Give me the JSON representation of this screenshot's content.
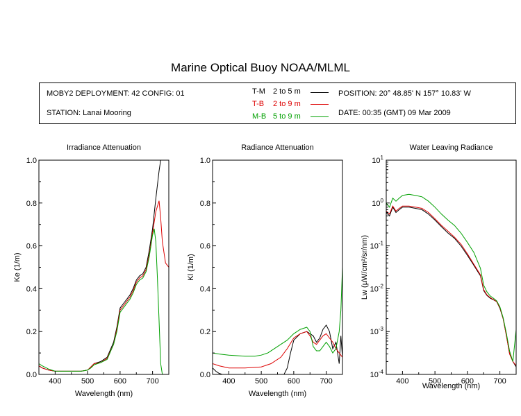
{
  "title": "Marine Optical Buoy NOAA/MLML",
  "info": {
    "deployment": "MOBY2 DEPLOYMENT: 42 CONFIG: 01",
    "station": "STATION: Lanai Mooring",
    "position": "POSITION: 20° 48.85' N   157° 10.83' W",
    "date": "DATE: 00:35 (GMT) 09 Mar 2009"
  },
  "legend": [
    {
      "code": "T-M",
      "range": "2 to 5  m",
      "color": "#000000"
    },
    {
      "code": "T-B",
      "range": "2 to 9  m",
      "color": "#dd0000"
    },
    {
      "code": "M-B",
      "range": "5 to 9  m",
      "color": "#00a000"
    }
  ],
  "chart_data": [
    {
      "type": "line",
      "title": "Irradiance Attenuation",
      "xlabel": "Wavelength (nm)",
      "ylabel": "Ke  (1/m)",
      "xlim": [
        350,
        750
      ],
      "ylim": [
        0,
        1
      ],
      "xticks": [
        "400",
        "500",
        "600",
        "700"
      ],
      "yticks": [
        "0.0",
        "0.2",
        "0.4",
        "0.6",
        "0.8",
        "1.0"
      ],
      "series": [
        {
          "name": "T-M",
          "color": "#000000",
          "x": [
            350,
            360,
            380,
            400,
            420,
            450,
            480,
            500,
            510,
            520,
            540,
            560,
            580,
            590,
            600,
            610,
            620,
            630,
            640,
            650,
            660,
            670,
            680,
            690,
            700,
            710,
            720,
            725
          ],
          "y": [
            0.04,
            0.03,
            0.02,
            0.015,
            0.015,
            0.015,
            0.015,
            0.02,
            0.035,
            0.05,
            0.06,
            0.08,
            0.15,
            0.22,
            0.31,
            0.33,
            0.35,
            0.37,
            0.4,
            0.44,
            0.46,
            0.47,
            0.5,
            0.58,
            0.68,
            0.82,
            0.95,
            1.0
          ]
        },
        {
          "name": "T-B",
          "color": "#dd0000",
          "x": [
            350,
            360,
            380,
            400,
            420,
            450,
            480,
            500,
            510,
            520,
            540,
            560,
            580,
            590,
            600,
            610,
            620,
            630,
            640,
            650,
            660,
            670,
            680,
            690,
            700,
            710,
            720,
            725,
            730,
            740,
            750
          ],
          "y": [
            0.04,
            0.03,
            0.02,
            0.015,
            0.015,
            0.015,
            0.015,
            0.02,
            0.035,
            0.05,
            0.055,
            0.075,
            0.14,
            0.21,
            0.3,
            0.32,
            0.34,
            0.36,
            0.39,
            0.43,
            0.45,
            0.46,
            0.49,
            0.56,
            0.66,
            0.76,
            0.81,
            0.73,
            0.62,
            0.52,
            0.5
          ]
        },
        {
          "name": "M-B",
          "color": "#00a000",
          "x": [
            350,
            360,
            380,
            400,
            420,
            450,
            480,
            500,
            510,
            520,
            540,
            560,
            580,
            590,
            600,
            610,
            620,
            630,
            640,
            650,
            660,
            670,
            680,
            690,
            700,
            705,
            710,
            715,
            720,
            725,
            730
          ],
          "y": [
            0.05,
            0.04,
            0.025,
            0.015,
            0.015,
            0.015,
            0.015,
            0.02,
            0.03,
            0.045,
            0.055,
            0.07,
            0.14,
            0.2,
            0.29,
            0.31,
            0.33,
            0.35,
            0.38,
            0.42,
            0.44,
            0.45,
            0.48,
            0.55,
            0.65,
            0.68,
            0.62,
            0.45,
            0.25,
            0.05,
            0.0
          ]
        }
      ]
    },
    {
      "type": "line",
      "title": "Radiance Attenuation",
      "xlabel": "Wavelength (nm)",
      "ylabel": "Kl  (1/m)",
      "xlim": [
        350,
        750
      ],
      "ylim": [
        0,
        1
      ],
      "xticks": [
        "400",
        "500",
        "600",
        "700"
      ],
      "yticks": [
        "0.0",
        "0.2",
        "0.4",
        "0.6",
        "0.8",
        "1.0"
      ],
      "series": [
        {
          "name": "T-M",
          "color": "#000000",
          "x": [
            350,
            360,
            370,
            380,
            390,
            400,
            450,
            500,
            550,
            570,
            580,
            590,
            600,
            620,
            640,
            660,
            670,
            680,
            690,
            700,
            710,
            720,
            730,
            740,
            745,
            750
          ],
          "y": [
            0.03,
            0.015,
            0.005,
            0.0,
            0.0,
            0.0,
            0.0,
            0.0,
            0.0,
            0.0,
            0.03,
            0.1,
            0.16,
            0.19,
            0.2,
            0.18,
            0.15,
            0.17,
            0.21,
            0.23,
            0.2,
            0.12,
            0.15,
            0.05,
            0.18,
            0.08
          ]
        },
        {
          "name": "T-B",
          "color": "#dd0000",
          "x": [
            350,
            370,
            400,
            450,
            500,
            530,
            560,
            580,
            600,
            620,
            640,
            650,
            660,
            670,
            680,
            690,
            700,
            710,
            720,
            730,
            740,
            750
          ],
          "y": [
            0.05,
            0.04,
            0.03,
            0.03,
            0.035,
            0.05,
            0.08,
            0.12,
            0.17,
            0.19,
            0.2,
            0.18,
            0.15,
            0.14,
            0.16,
            0.18,
            0.19,
            0.17,
            0.15,
            0.12,
            0.1,
            0.08
          ]
        },
        {
          "name": "M-B",
          "color": "#00a000",
          "x": [
            350,
            370,
            400,
            450,
            480,
            500,
            520,
            540,
            560,
            580,
            600,
            620,
            640,
            650,
            660,
            670,
            680,
            690,
            700,
            710,
            720,
            730,
            740,
            745,
            750
          ],
          "y": [
            0.1,
            0.095,
            0.09,
            0.085,
            0.085,
            0.09,
            0.1,
            0.12,
            0.14,
            0.16,
            0.19,
            0.21,
            0.22,
            0.2,
            0.13,
            0.11,
            0.11,
            0.13,
            0.15,
            0.13,
            0.1,
            0.12,
            0.2,
            0.3,
            0.5
          ]
        }
      ]
    },
    {
      "type": "line",
      "title": "Water Leaving Radiance",
      "xlabel": "Wavelength (nm)",
      "ylabel": "Lw  (µW/cm²/sr/nm)",
      "yscale": "log",
      "xlim": [
        350,
        750
      ],
      "ylim": [
        0.0001,
        10
      ],
      "xticks": [
        "400",
        "500",
        "600",
        "700"
      ],
      "yticks": [
        {
          "base": "10",
          "exp": "-4"
        },
        {
          "base": "10",
          "exp": "-3"
        },
        {
          "base": "10",
          "exp": "-2"
        },
        {
          "base": "10",
          "exp": "-1"
        },
        {
          "base": "10",
          "exp": "0"
        },
        {
          "base": "10",
          "exp": "1"
        }
      ],
      "series": [
        {
          "name": "T-M",
          "color": "#000000",
          "x": [
            350,
            360,
            370,
            380,
            390,
            400,
            420,
            440,
            460,
            480,
            500,
            520,
            540,
            560,
            580,
            600,
            620,
            640,
            650,
            660,
            670,
            680,
            690,
            700,
            710,
            720,
            730,
            740,
            750
          ],
          "y": [
            0.6,
            0.5,
            0.8,
            0.6,
            0.7,
            0.8,
            0.8,
            0.75,
            0.7,
            0.55,
            0.4,
            0.28,
            0.2,
            0.15,
            0.1,
            0.06,
            0.035,
            0.02,
            0.009,
            0.007,
            0.006,
            0.0055,
            0.005,
            0.0035,
            0.002,
            0.0008,
            0.0003,
            0.0002,
            0.00015
          ]
        },
        {
          "name": "T-B",
          "color": "#dd0000",
          "x": [
            350,
            360,
            370,
            380,
            390,
            400,
            420,
            440,
            460,
            480,
            500,
            520,
            540,
            560,
            580,
            600,
            620,
            640,
            650,
            660,
            670,
            680,
            690,
            700,
            710,
            720,
            730,
            740,
            750
          ],
          "y": [
            0.65,
            0.55,
            0.85,
            0.65,
            0.75,
            0.85,
            0.85,
            0.8,
            0.75,
            0.6,
            0.43,
            0.3,
            0.22,
            0.16,
            0.11,
            0.065,
            0.037,
            0.021,
            0.0095,
            0.0072,
            0.0062,
            0.0056,
            0.005,
            0.0036,
            0.002,
            0.0008,
            0.0003,
            0.0002,
            0.00016
          ]
        },
        {
          "name": "M-B",
          "color": "#00a000",
          "x": [
            350,
            360,
            370,
            380,
            390,
            400,
            420,
            440,
            460,
            480,
            500,
            520,
            540,
            560,
            580,
            600,
            620,
            640,
            650,
            660,
            670,
            680,
            690,
            700,
            710,
            720,
            730,
            740,
            750
          ],
          "y": [
            1.0,
            0.8,
            1.3,
            1.1,
            1.3,
            1.5,
            1.6,
            1.5,
            1.4,
            1.1,
            0.8,
            0.55,
            0.4,
            0.3,
            0.2,
            0.12,
            0.07,
            0.03,
            0.012,
            0.0085,
            0.0068,
            0.006,
            0.0052,
            0.0038,
            0.0021,
            0.0009,
            0.00035,
            0.0002,
            0.0011
          ]
        }
      ]
    }
  ]
}
